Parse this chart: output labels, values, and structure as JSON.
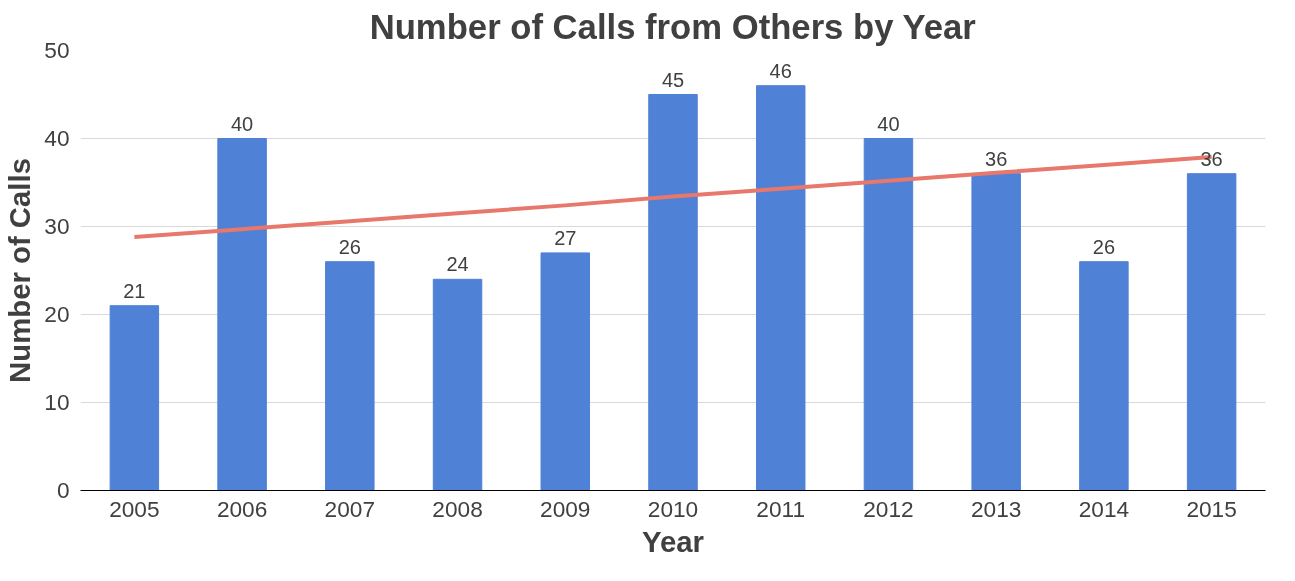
{
  "chart_data": {
    "type": "bar",
    "title": "Number of Calls from Others by Year",
    "xlabel": "Year",
    "ylabel": "Number of Calls",
    "categories": [
      "2005",
      "2006",
      "2007",
      "2008",
      "2009",
      "2010",
      "2011",
      "2012",
      "2013",
      "2014",
      "2015"
    ],
    "series": [
      {
        "color": "#4f81d6",
        "values": [
          21,
          40,
          26,
          24,
          27,
          45,
          46,
          40,
          36,
          26,
          36
        ],
        "value_labels": [
          "21",
          "40",
          "26",
          "24",
          "27",
          "45",
          "46",
          "40",
          "36",
          "26",
          "36"
        ]
      },
      {
        "type": "line",
        "color": "#e8786b",
        "values": [
          28.8,
          29.7,
          30.6,
          31.5,
          32.4,
          33.4,
          34.3,
          35.2,
          36.1,
          37.0,
          37.9
        ]
      }
    ],
    "ylim": [
      0,
      50
    ],
    "yticks": [
      0,
      10,
      20,
      30,
      40,
      50
    ],
    "grid": "y"
  }
}
